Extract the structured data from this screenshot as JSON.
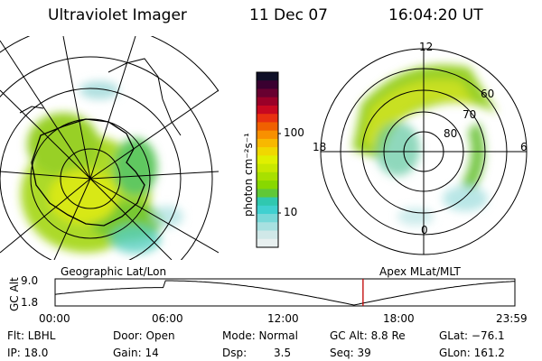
{
  "header": {
    "instrument": "Ultraviolet Imager",
    "date": "11 Dec 07",
    "time": "16:04:20 UT"
  },
  "left_panel": {
    "caption": "Geographic Lat/Lon"
  },
  "right_panel": {
    "caption": "Apex MLat/MLT",
    "mlt_labels": {
      "top": "12",
      "left": "18",
      "right": "6",
      "bottom": "0"
    },
    "lat_labels": [
      "60",
      "70",
      "80"
    ]
  },
  "colorbar": {
    "unit_label": "photon cm⁻²s⁻¹",
    "tick_labels": [
      "100",
      "10"
    ],
    "colors": [
      "#101028",
      "#3a0030",
      "#680030",
      "#9a0028",
      "#c80820",
      "#e83010",
      "#f06000",
      "#f89000",
      "#f8b800",
      "#f0d800",
      "#e0f000",
      "#c8e800",
      "#a8e000",
      "#88d800",
      "#60c838",
      "#30c8b0",
      "#40d0d0",
      "#78d8d8",
      "#a8e0e0",
      "#d0e8e8",
      "#e8f0f0"
    ]
  },
  "altitude_plot": {
    "y_label": "GC Alt",
    "y_ticks": [
      "9.0",
      "1.8"
    ],
    "time_ticks": [
      "00:00",
      "06:00",
      "12:00",
      "18:00",
      "23:59"
    ],
    "current_time_fraction": 0.6697,
    "marker_color": "#c00000"
  },
  "status": {
    "flt": "Flt: LBHL",
    "door": "Door: Open",
    "mode": "Mode: Normal",
    "gc_alt": "GC Alt: 8.8 Re",
    "glat": "GLat: −76.1",
    "ip": "IP: 18.0",
    "gain": "Gain: 14",
    "dsp_label": "Dsp:",
    "dsp_value": "3.5",
    "seq": "Seq: 39",
    "glon": "GLon: 161.2"
  }
}
